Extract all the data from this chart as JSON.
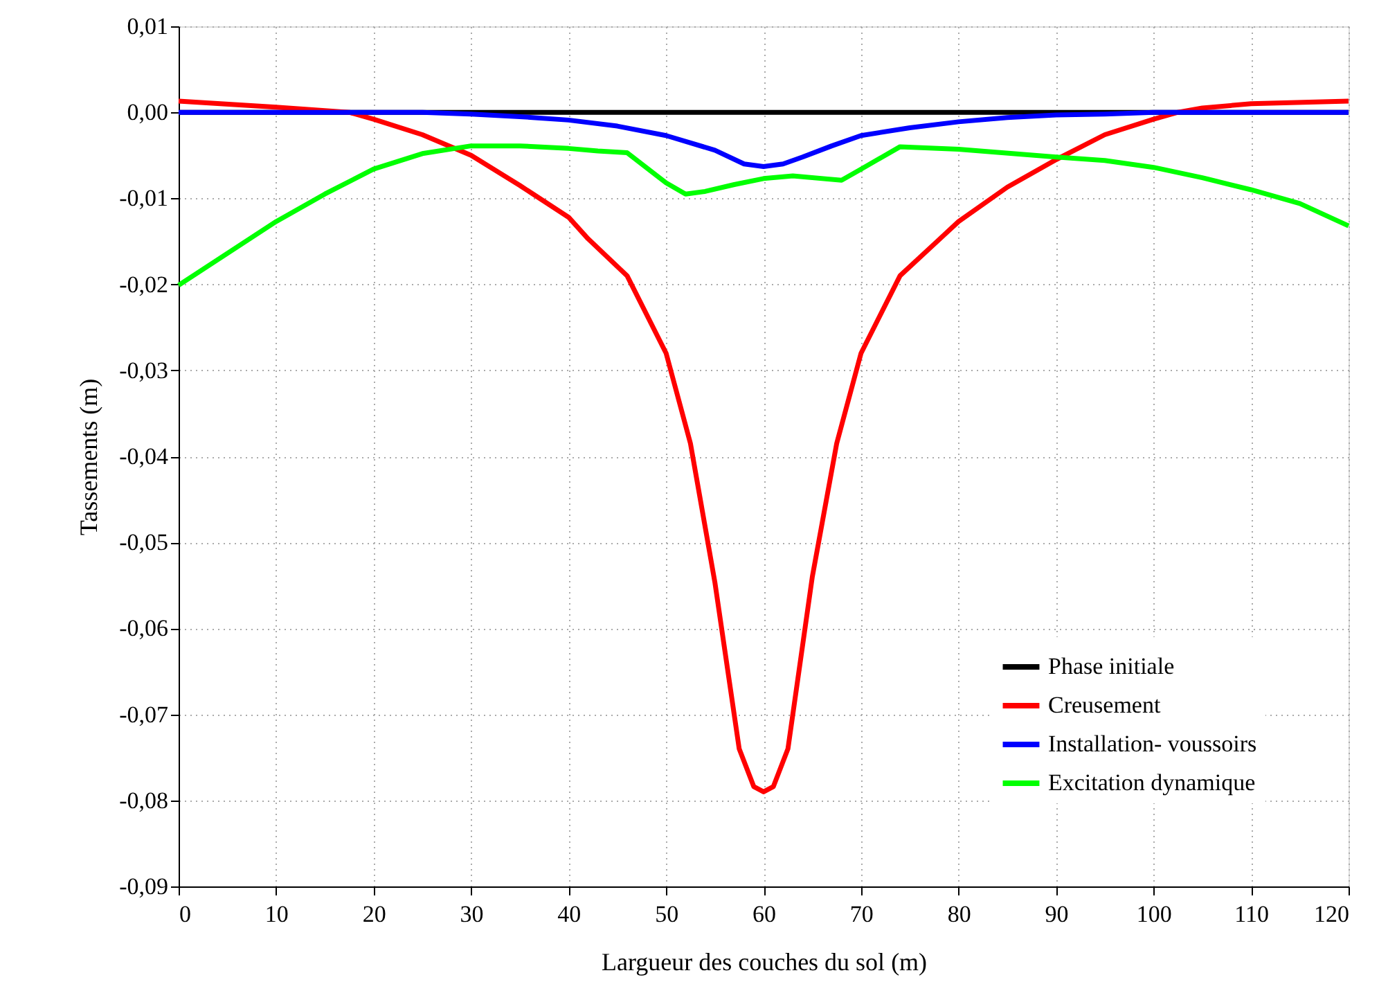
{
  "chart_data": {
    "type": "line",
    "xlabel": "Largueur des couches du sol (m)",
    "ylabel": "Tassements (m)",
    "xlim": [
      0,
      120
    ],
    "xticks": [
      0,
      10,
      20,
      30,
      40,
      50,
      60,
      70,
      80,
      90,
      100,
      110,
      120
    ],
    "ylim": [
      -0.09,
      0.01
    ],
    "yticks": [
      {
        "value": -0.09,
        "label": "-0,09"
      },
      {
        "value": -0.08,
        "label": "-0,08"
      },
      {
        "value": -0.07,
        "label": "-0,07"
      },
      {
        "value": -0.06,
        "label": "-0,06"
      },
      {
        "value": -0.05,
        "label": "-0,05"
      },
      {
        "value": -0.04,
        "label": "-0,04"
      },
      {
        "value": -0.03,
        "label": "-0,03"
      },
      {
        "value": -0.02,
        "label": "-0,02"
      },
      {
        "value": -0.01,
        "label": "-0,01"
      },
      {
        "value": 0,
        "label": "0,00"
      },
      {
        "value": 0.01,
        "label": "0,01"
      }
    ],
    "grid": true,
    "legend": "bottom right",
    "marker": "none",
    "line_style": "solid",
    "series": [
      {
        "name": "Phase initiale",
        "color": "#000000",
        "x": [
          0,
          120
        ],
        "values": [
          0,
          0
        ]
      },
      {
        "name": "Creusement",
        "color": "#ff0000",
        "x": [
          0,
          10,
          17.5,
          20,
          25,
          30,
          35,
          40,
          42,
          46,
          50,
          52.5,
          55,
          57.5,
          59,
          60,
          61,
          62.5,
          65,
          67.5,
          70,
          74,
          78,
          80,
          85,
          90,
          95,
          100,
          102.5,
          105,
          110,
          120
        ],
        "values": [
          0.0013,
          0.0006,
          0,
          -0.0008,
          -0.0026,
          -0.005,
          -0.0085,
          -0.0122,
          -0.0147,
          -0.019,
          -0.028,
          -0.0385,
          -0.0546,
          -0.074,
          -0.0784,
          -0.079,
          -0.0784,
          -0.074,
          -0.054,
          -0.0385,
          -0.028,
          -0.019,
          -0.0148,
          -0.0127,
          -0.0087,
          -0.0055,
          -0.0026,
          -0.0008,
          0,
          0.0005,
          0.001,
          0.0013
        ]
      },
      {
        "name": "Installation- voussoirs",
        "color": "#0000ff",
        "x": [
          0,
          25,
          30,
          35,
          40,
          45,
          50,
          55,
          58,
          60,
          62,
          64,
          67,
          70,
          75,
          80,
          85,
          90,
          95,
          100,
          120
        ],
        "values": [
          0,
          0,
          -0.0002,
          -0.0005,
          -0.0009,
          -0.0016,
          -0.0027,
          -0.0044,
          -0.006,
          -0.0063,
          -0.006,
          -0.0052,
          -0.0039,
          -0.0027,
          -0.0018,
          -0.0011,
          -0.0006,
          -0.0003,
          -0.0002,
          0,
          0
        ]
      },
      {
        "name": "Excitation dynamique",
        "color": "#00ff00",
        "x": [
          0,
          5,
          10,
          15,
          20,
          25,
          30,
          35,
          40,
          43,
          46,
          50,
          52,
          54,
          57,
          60,
          63,
          68,
          70,
          74,
          80,
          90,
          95,
          100,
          105,
          110,
          115,
          120
        ],
        "values": [
          -0.0201,
          -0.0164,
          -0.0127,
          -0.0095,
          -0.0066,
          -0.0048,
          -0.0039,
          -0.0039,
          -0.0042,
          -0.0045,
          -0.0047,
          -0.0082,
          -0.0095,
          -0.0092,
          -0.0084,
          -0.0077,
          -0.0074,
          -0.0079,
          -0.0066,
          -0.004,
          -0.0043,
          -0.0052,
          -0.0056,
          -0.0064,
          -0.0076,
          -0.009,
          -0.0106,
          -0.0132
        ]
      }
    ]
  }
}
